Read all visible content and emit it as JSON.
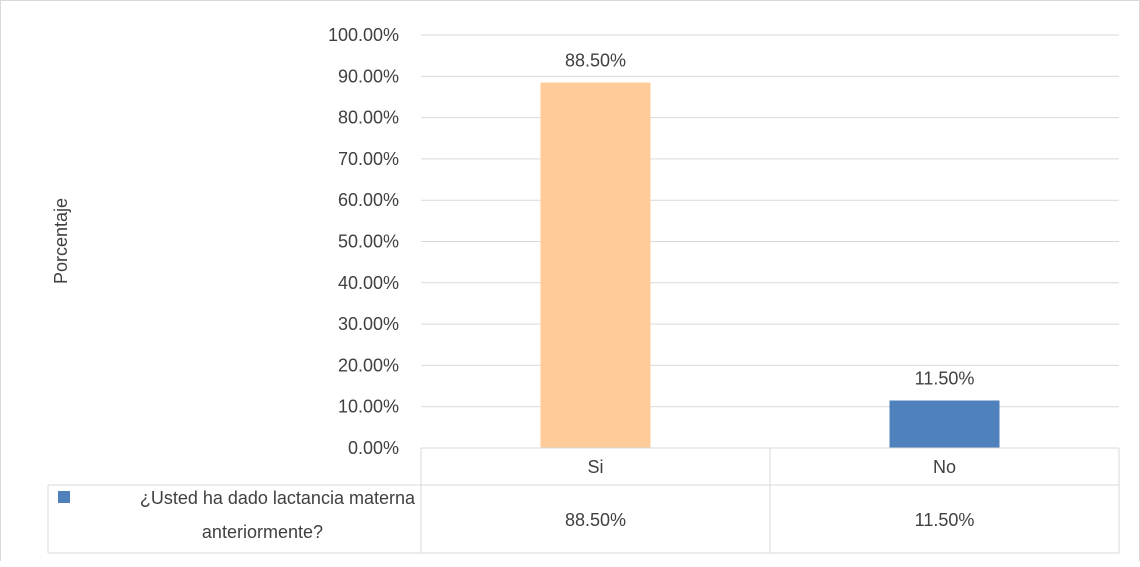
{
  "chart_data": {
    "type": "bar",
    "categories": [
      "Si",
      "No"
    ],
    "values": [
      88.5,
      11.5
    ],
    "value_labels": [
      "88.50%",
      "11.50%"
    ],
    "bar_colors": [
      "#ffcc99",
      "#4f81bd"
    ],
    "ylabel": "Porcentaje",
    "ylim": [
      0,
      100
    ],
    "yticks": [
      "0.00%",
      "10.00%",
      "20.00%",
      "30.00%",
      "40.00%",
      "50.00%",
      "60.00%",
      "70.00%",
      "80.00%",
      "90.00%",
      "100.00%"
    ],
    "grid": true,
    "data_table": {
      "series_label_line1": "¿Usted ha dado lactancia materna",
      "series_label_line2": "anteriormente?",
      "legend_key_color": "#4f81bd",
      "cells": [
        "88.50%",
        "11.50%"
      ]
    }
  }
}
